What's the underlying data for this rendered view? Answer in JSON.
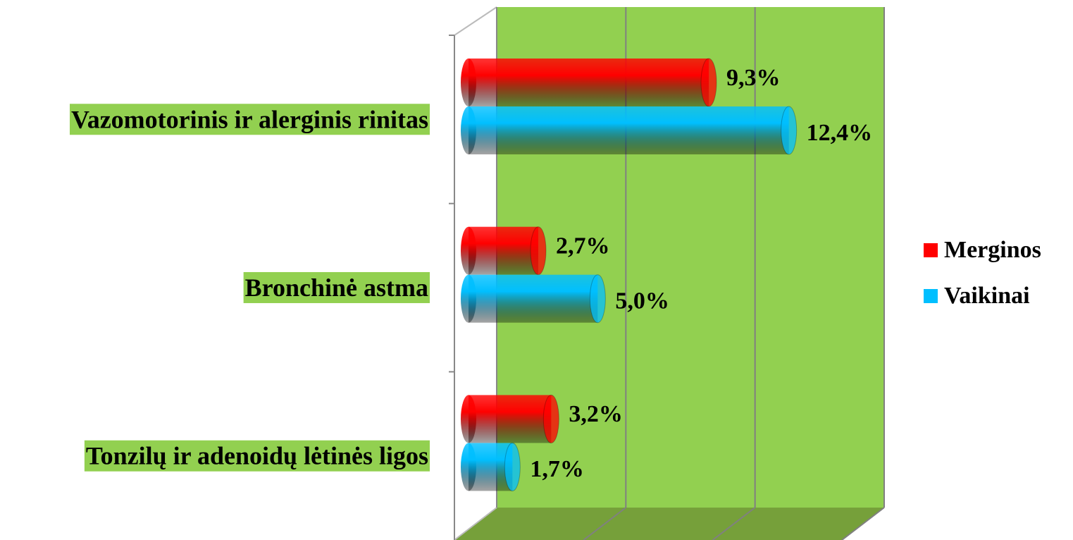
{
  "chart_data": {
    "type": "bar",
    "orientation": "horizontal",
    "categories": [
      "Vazomotorinis ir alerginis rinitas",
      "Bronchinė astma",
      "Tonzilų ir adenoidų lėtinės ligos"
    ],
    "series": [
      {
        "name": "Merginos",
        "color": "#ff0000",
        "values": [
          9.3,
          2.7,
          3.2
        ],
        "value_labels": [
          "9,3%",
          "2,7%",
          "3,2%"
        ]
      },
      {
        "name": "Vaikinai",
        "color": "#00bfff",
        "values": [
          12.4,
          5.0,
          1.7
        ],
        "value_labels": [
          "12,4%",
          "5,0%",
          "1,7%"
        ]
      }
    ],
    "xlim": [
      0,
      15
    ],
    "xticks": [
      0,
      5,
      10,
      15
    ],
    "grid": true,
    "legend": "right"
  }
}
